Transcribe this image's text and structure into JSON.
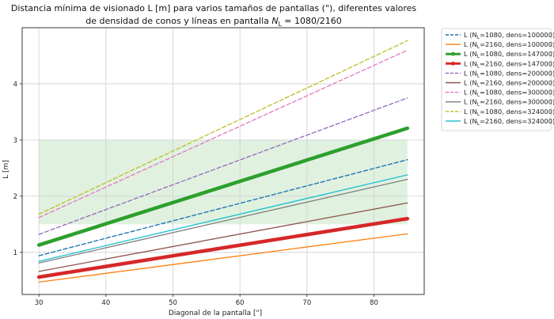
{
  "chart_data": {
    "type": "line",
    "title_line1": "Distancia mínima de visionado L [m] para varios tamaños de pantallas (\"), diferentes valores",
    "title_line2": "de densidad de conos y líneas en pantalla",
    "title_math": "N",
    "title_math_sub": "L",
    "title_tail": " = 1080/2160",
    "xlabel": "Diagonal de la pantalla [\"]",
    "ylabel": "L [m]",
    "xlim": [
      27.5,
      87.5
    ],
    "ylim": [
      0.25,
      5.0
    ],
    "x_ticks": [
      30,
      40,
      50,
      60,
      70,
      80
    ],
    "y_ticks": [
      1,
      2,
      3,
      4
    ],
    "grid": true,
    "legend_position": "outside-right",
    "shaded_band": {
      "y0": 1.5,
      "y1": 3.0,
      "x0": 30,
      "x1": 85,
      "color": "#2ca02c"
    },
    "series": [
      {
        "name": "L (N_L=1080, dens=100000)",
        "legend_prefix": "L (N",
        "legend_sub": "L",
        "legend_suffix": "=1080, dens=100000)",
        "x": [
          30,
          85
        ],
        "y": [
          0.94,
          2.65
        ],
        "color": "#1f77b4",
        "style": "dashed",
        "width": 1.4
      },
      {
        "name": "L (N_L=2160, dens=100000)",
        "legend_prefix": "L (N",
        "legend_sub": "L",
        "legend_suffix": "=2160, dens=100000)",
        "x": [
          30,
          85
        ],
        "y": [
          0.47,
          1.33
        ],
        "color": "#ff7f0e",
        "style": "solid",
        "width": 1.3
      },
      {
        "name": "L (N_L=1080, dens=147000)",
        "legend_prefix": "L (N",
        "legend_sub": "L",
        "legend_suffix": "=1080, dens=147000)",
        "x": [
          30,
          85
        ],
        "y": [
          1.13,
          3.21
        ],
        "color": "#2ca02c",
        "style": "thick",
        "width": 4.5
      },
      {
        "name": "L (N_L=2160, dens=147000)",
        "legend_prefix": "L (N",
        "legend_sub": "L",
        "legend_suffix": "=2160, dens=147000)",
        "x": [
          30,
          85
        ],
        "y": [
          0.56,
          1.6
        ],
        "color": "#d62728",
        "style": "thick",
        "width": 4.5
      },
      {
        "name": "L (N_L=1080, dens=200000)",
        "legend_prefix": "L (N",
        "legend_sub": "L",
        "legend_suffix": "=1080, dens=200000)",
        "x": [
          30,
          85
        ],
        "y": [
          1.32,
          3.75
        ],
        "color": "#9467bd",
        "style": "dashed",
        "width": 1.3
      },
      {
        "name": "L (N_L=2160, dens=200000)",
        "legend_prefix": "L (N",
        "legend_sub": "L",
        "legend_suffix": "=2160, dens=200000)",
        "x": [
          30,
          85
        ],
        "y": [
          0.66,
          1.88
        ],
        "color": "#8c564b",
        "style": "solid",
        "width": 1.3
      },
      {
        "name": "L (N_L=1080, dens=300000)",
        "legend_prefix": "L (N",
        "legend_sub": "L",
        "legend_suffix": "=1080, dens=300000)",
        "x": [
          30,
          85
        ],
        "y": [
          1.62,
          4.6
        ],
        "color": "#e377c2",
        "style": "dashed",
        "width": 1.3
      },
      {
        "name": "L (N_L=2160, dens=300000)",
        "legend_prefix": "L (N",
        "legend_sub": "L",
        "legend_suffix": "=2160, dens=300000)",
        "x": [
          30,
          85
        ],
        "y": [
          0.81,
          2.3
        ],
        "color": "#7f7f7f",
        "style": "solid",
        "width": 1.3
      },
      {
        "name": "L (N_L=1080, dens=324000)",
        "legend_prefix": "L (N",
        "legend_sub": "L",
        "legend_suffix": "=1080, dens=324000)",
        "x": [
          30,
          85
        ],
        "y": [
          1.68,
          4.77
        ],
        "color": "#bcbd22",
        "style": "dashed",
        "width": 1.3
      },
      {
        "name": "L (N_L=2160, dens=324000)",
        "legend_prefix": "L (N",
        "legend_sub": "L",
        "legend_suffix": "=2160, dens=324000)",
        "x": [
          30,
          85
        ],
        "y": [
          0.84,
          2.38
        ],
        "color": "#17becf",
        "style": "solid",
        "width": 1.3
      }
    ]
  }
}
